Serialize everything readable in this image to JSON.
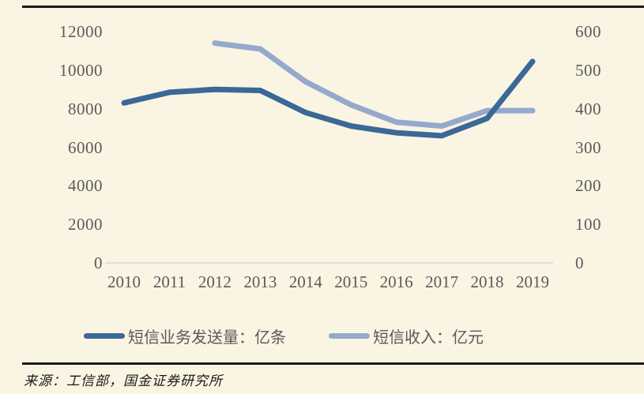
{
  "source_note": "来源：工信部，国金证券研究所",
  "colors": {
    "background": "#FAF4E3",
    "rule_black": "#1A1A1A",
    "axis_text": "#5A5A5A",
    "baseline_grid": "#D9D9D9",
    "series_send_volume": "#3A6897",
    "series_revenue": "#94A9CD"
  },
  "chart_data": {
    "type": "line",
    "title": "",
    "categories": [
      "2010",
      "2011",
      "2012",
      "2013",
      "2014",
      "2015",
      "2016",
      "2017",
      "2018",
      "2019"
    ],
    "series": [
      {
        "name": "短信业务发送量：亿条",
        "axis": "left",
        "color": "#3A6897",
        "values": [
          8300,
          8850,
          9000,
          8950,
          7800,
          7100,
          6750,
          6600,
          7500,
          10450
        ]
      },
      {
        "name": "短信收入：亿元",
        "axis": "right",
        "color": "#94A9CD",
        "values": [
          null,
          null,
          570,
          555,
          470,
          410,
          365,
          355,
          395,
          395
        ]
      }
    ],
    "left_axis": {
      "ticks": [
        0,
        2000,
        4000,
        6000,
        8000,
        10000,
        12000
      ],
      "range": [
        0,
        12000
      ]
    },
    "right_axis": {
      "ticks": [
        0,
        100,
        200,
        300,
        400,
        500,
        600
      ],
      "range": [
        0,
        600
      ]
    },
    "grid": "baseline-only",
    "legend_position": "bottom"
  }
}
